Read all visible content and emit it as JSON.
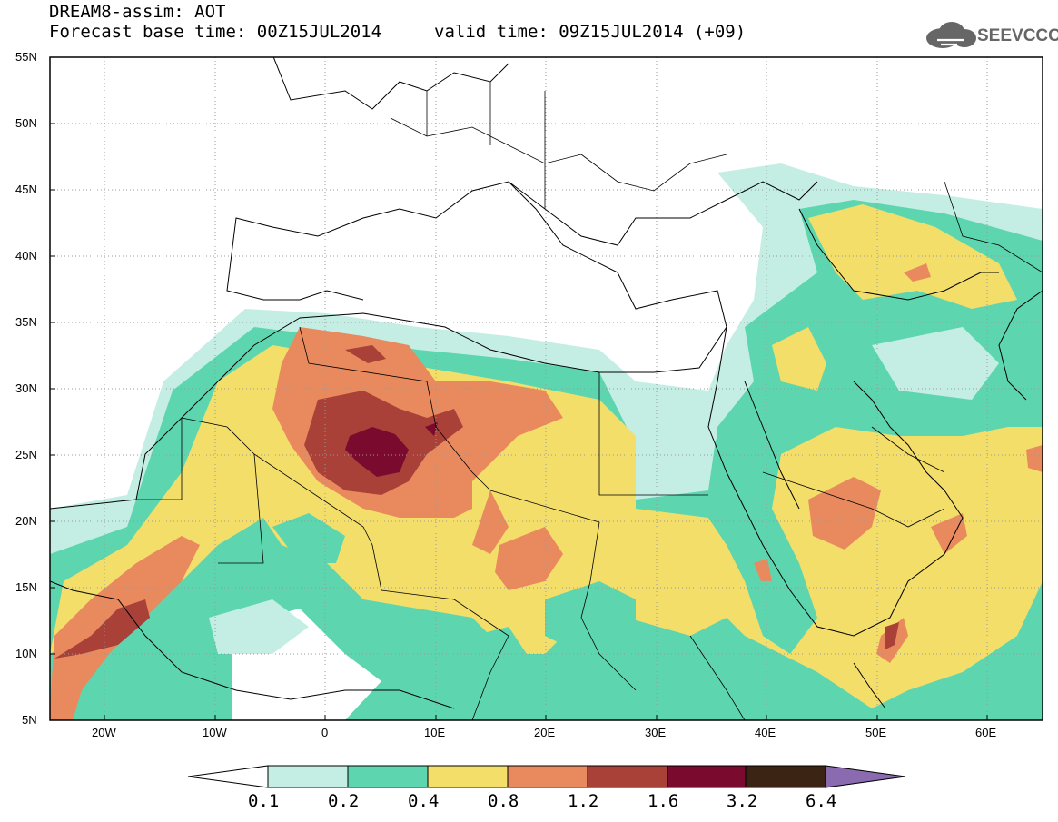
{
  "header": {
    "title": "DREAM8-assim: AOT",
    "base_time": "Forecast base time: 00Z15JUL2014",
    "valid_time": "valid time: 09Z15JUL2014 (+09)"
  },
  "logo": {
    "text": "SEEVCCC",
    "icon": "cloud-icon"
  },
  "axes": {
    "latitude_labels": [
      "55N",
      "50N",
      "45N",
      "40N",
      "35N",
      "30N",
      "25N",
      "20N",
      "15N",
      "10N",
      "5N"
    ],
    "longitude_labels": [
      "20W",
      "10W",
      "0",
      "10E",
      "20E",
      "30E",
      "40E",
      "50E",
      "60E"
    ]
  },
  "colorbar": {
    "labels": [
      "0.1",
      "0.2",
      "0.4",
      "0.8",
      "1.2",
      "1.6",
      "3.2",
      "6.4"
    ],
    "colors": [
      "#c4eee4",
      "#5dd6b0",
      "#f3de6a",
      "#e98a5e",
      "#a94139",
      "#7a0b2e",
      "#3b2414",
      "#8b6bb0"
    ]
  },
  "colors": {
    "c1": "#c4eee4",
    "c2": "#5dd6b0",
    "c3": "#f3de6a",
    "c4": "#e98a5e",
    "c5": "#a94139",
    "c6": "#7a0b2e"
  }
}
